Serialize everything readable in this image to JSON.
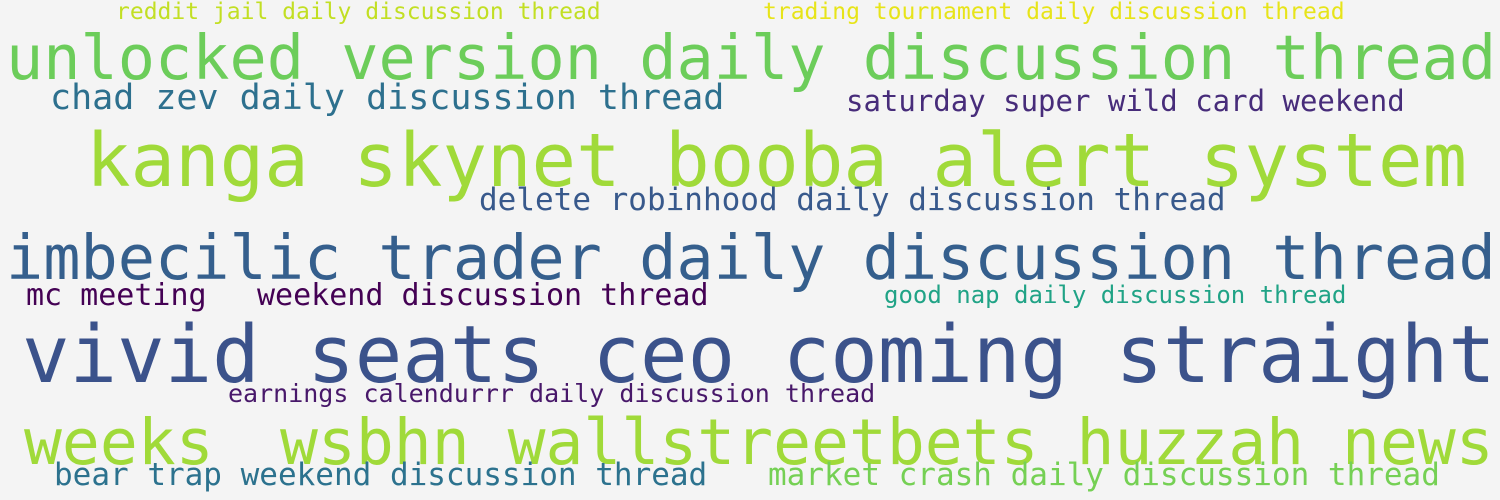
{
  "words": [
    {
      "text": "reddit jail daily discussion thread",
      "color": "#c2df23"
    },
    {
      "text": "trading tournament daily discussion thread",
      "color": "#e7e419"
    },
    {
      "text": "unlocked version daily discussion thread",
      "color": "#6ccd5a"
    },
    {
      "text": "chad zev daily discussion thread",
      "color": "#2d708e"
    },
    {
      "text": "saturday super wild card weekend",
      "color": "#472c7a"
    },
    {
      "text": "kanga skynet booba alert system",
      "color": "#a0da39"
    },
    {
      "text": "delete robinhood daily discussion thread",
      "color": "#38598c"
    },
    {
      "text": "imbecilic trader daily discussion thread",
      "color": "#355f8d"
    },
    {
      "text": "mc meeting",
      "color": "#440154"
    },
    {
      "text": "weekend discussion thread",
      "color": "#440154"
    },
    {
      "text": "good nap daily discussion thread",
      "color": "#20a386"
    },
    {
      "text": "vivid seats ceo coming straight",
      "color": "#3b528b"
    },
    {
      "text": "earnings calendurrr daily discussion thread",
      "color": "#48186a"
    },
    {
      "text": "weeks",
      "color": "#a0da39"
    },
    {
      "text": "wsbhn wallstreetbets huzzah news",
      "color": "#a0da39"
    },
    {
      "text": "bear trap weekend discussion thread",
      "color": "#2c728e"
    },
    {
      "text": "market crash daily discussion thread",
      "color": "#75d054"
    }
  ]
}
